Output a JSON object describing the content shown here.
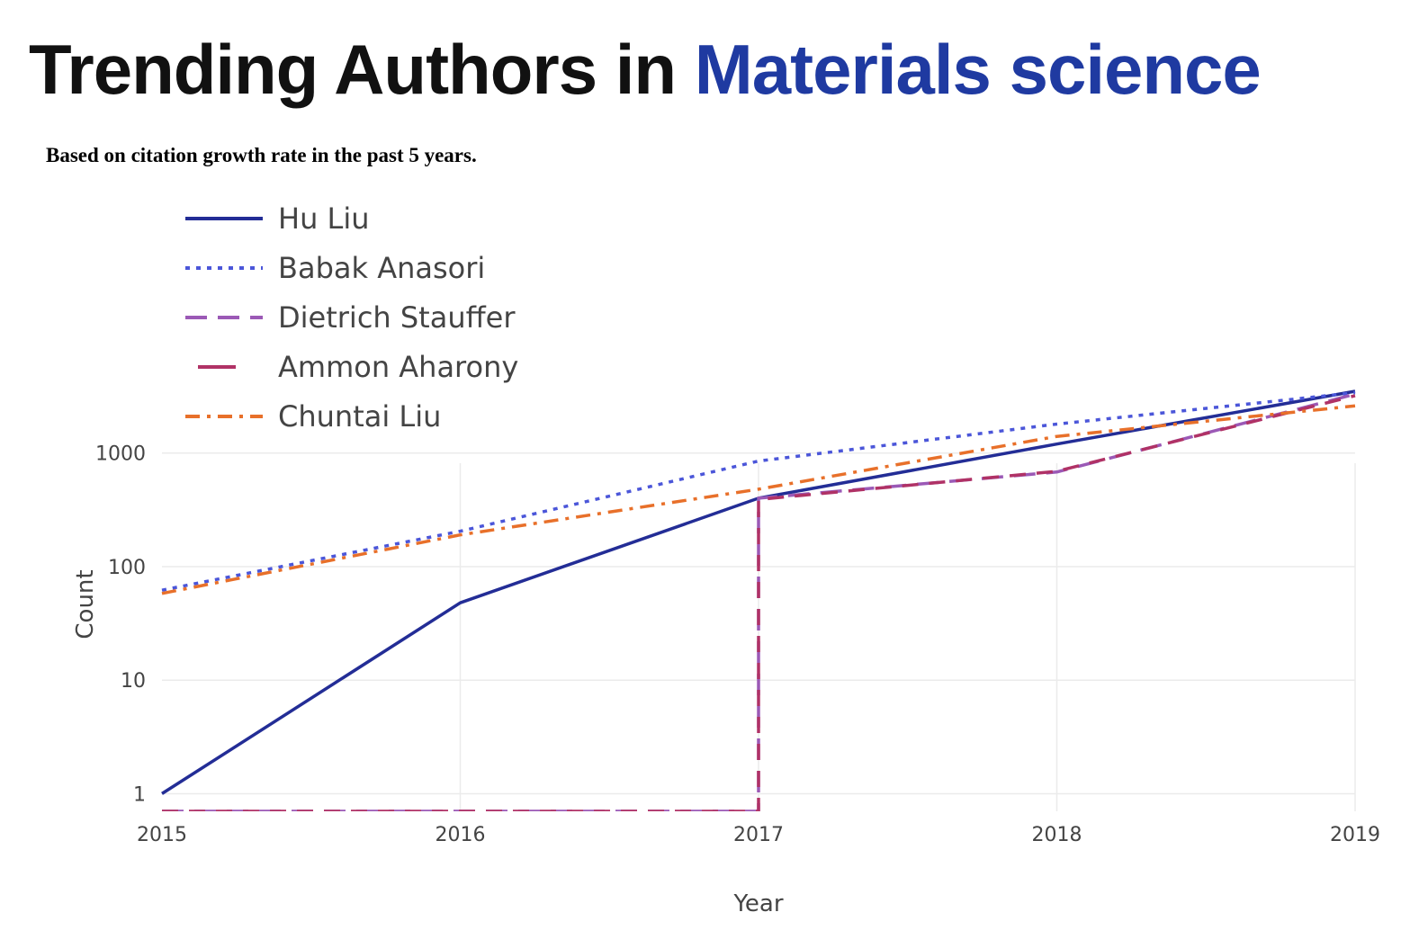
{
  "header": {
    "title_prefix": "Trending Authors in ",
    "title_topic": "Materials science",
    "subtitle": "Based on citation growth rate in the past 5 years."
  },
  "chart_data": {
    "type": "line",
    "xlabel": "Year",
    "ylabel": "Count",
    "y_scale": "log",
    "ylim": [
      0.7,
      3500
    ],
    "x": [
      2015,
      2016,
      2017,
      2018,
      2019
    ],
    "x_ticks": [
      "2015",
      "2016",
      "2017",
      "2018",
      "2019"
    ],
    "y_ticks": [
      1,
      10,
      100,
      1000
    ],
    "y_tick_labels": [
      "1",
      "10",
      "100",
      "1000"
    ],
    "grid": true,
    "legend_position": "top-left",
    "series": [
      {
        "name": "Hu Liu",
        "color": "#232d96",
        "dash": "solid",
        "points": [
          [
            2015,
            1
          ],
          [
            2016,
            48
          ],
          [
            2017,
            400
          ],
          [
            2018,
            1200
          ],
          [
            2019,
            3500
          ]
        ]
      },
      {
        "name": "Babak Anasori",
        "color": "#4b56d9",
        "dash": "dot",
        "points": [
          [
            2015,
            62
          ],
          [
            2016,
            205
          ],
          [
            2017,
            850
          ],
          [
            2018,
            1800
          ],
          [
            2019,
            3400
          ]
        ]
      },
      {
        "name": "Dietrich Stauffer",
        "color": "#9b59b6",
        "dash": "longdash",
        "points": [
          [
            2015,
            0.7
          ],
          [
            2017,
            0.7
          ],
          [
            2017,
            400
          ],
          [
            2018,
            680
          ],
          [
            2019,
            3300
          ]
        ]
      },
      {
        "name": "Ammon Aharony",
        "color": "#b03266",
        "dash": "dash",
        "points": [
          [
            2015,
            0.7
          ],
          [
            2017,
            0.7
          ],
          [
            2017,
            390
          ],
          [
            2018,
            690
          ],
          [
            2019,
            3200
          ]
        ]
      },
      {
        "name": "Chuntai Liu",
        "color": "#e8702a",
        "dash": "dashdot",
        "points": [
          [
            2015,
            58
          ],
          [
            2016,
            190
          ],
          [
            2017,
            480
          ],
          [
            2018,
            1400
          ],
          [
            2019,
            2600
          ]
        ]
      }
    ]
  }
}
